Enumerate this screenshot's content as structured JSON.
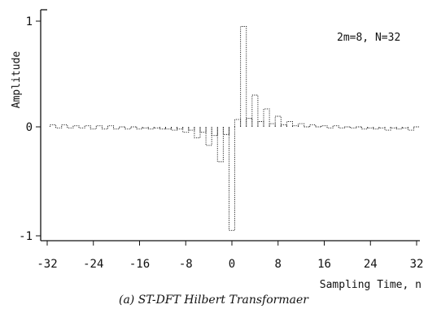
{
  "chart_data": {
    "type": "bar",
    "title": "",
    "caption": "(a) ST-DFT Hilbert Transformaer",
    "annotation": "2m=8, N=32",
    "xlabel": "Sampling Time, n",
    "ylabel": "Amplitude",
    "xlim": [
      -32,
      32
    ],
    "ylim": [
      -1,
      1
    ],
    "x_ticks": [
      "-32",
      "-24",
      "-16",
      "-8",
      "0",
      "8",
      "16",
      "24",
      "32"
    ],
    "y_ticks": [
      "-1",
      "0",
      "1"
    ],
    "grid": false,
    "x": [
      -31,
      -30,
      -29,
      -28,
      -27,
      -26,
      -25,
      -24,
      -23,
      -22,
      -21,
      -20,
      -19,
      -18,
      -17,
      -16,
      -15,
      -14,
      -13,
      -12,
      -11,
      -10,
      -9,
      -8,
      -7,
      -6,
      -5,
      -4,
      -3,
      -2,
      -1,
      0,
      1,
      2,
      3,
      4,
      5,
      6,
      7,
      8,
      9,
      10,
      11,
      12,
      13,
      14,
      15,
      16,
      17,
      18,
      19,
      20,
      21,
      22,
      23,
      24,
      25,
      26,
      27,
      28,
      29,
      30,
      31,
      32
    ],
    "values": [
      0.02,
      -0.01,
      0.02,
      -0.01,
      0.01,
      -0.01,
      0.01,
      -0.02,
      0.01,
      -0.02,
      0.01,
      -0.02,
      0.0,
      -0.02,
      0.0,
      -0.02,
      -0.01,
      -0.02,
      -0.01,
      -0.02,
      -0.02,
      -0.03,
      -0.02,
      -0.05,
      -0.03,
      -0.1,
      -0.05,
      -0.17,
      -0.08,
      -0.32,
      -0.07,
      -0.95,
      0.07,
      0.95,
      0.08,
      0.3,
      0.05,
      0.17,
      0.03,
      0.1,
      0.02,
      0.05,
      0.01,
      0.03,
      0.0,
      0.02,
      0.0,
      0.01,
      -0.01,
      0.01,
      -0.01,
      0.0,
      -0.01,
      0.0,
      -0.02,
      -0.01,
      -0.02,
      -0.01,
      -0.03,
      -0.01,
      -0.02,
      -0.01,
      -0.03,
      0.0
    ]
  }
}
